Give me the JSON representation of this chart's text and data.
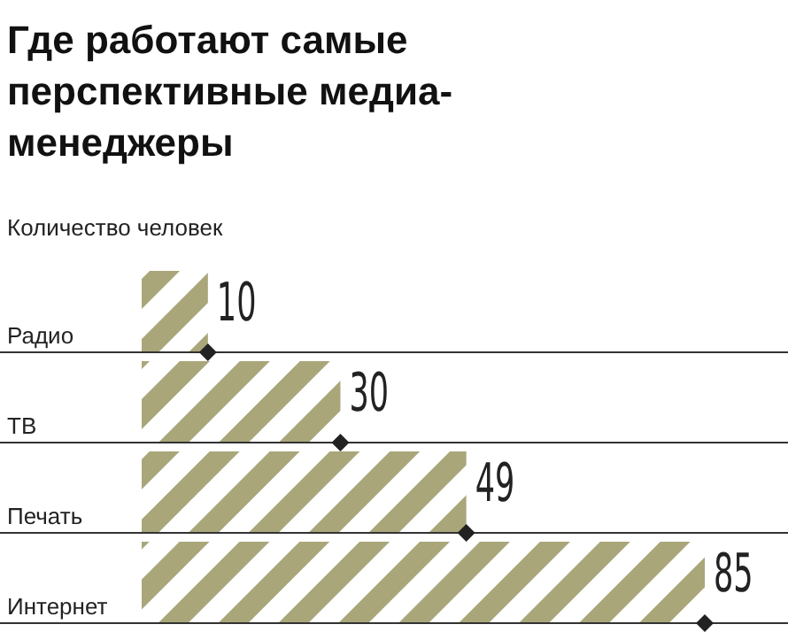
{
  "chart_data": {
    "type": "bar",
    "orientation": "horizontal",
    "title": "Где работают самые перспективные медиа-менеджеры",
    "subtitle": "Количество человек",
    "categories": [
      "Радио",
      "ТВ",
      "Печать",
      "Интернет"
    ],
    "values": [
      10,
      30,
      49,
      85
    ],
    "color": "#a9a67a",
    "data_labels": true,
    "marker": "diamond"
  }
}
